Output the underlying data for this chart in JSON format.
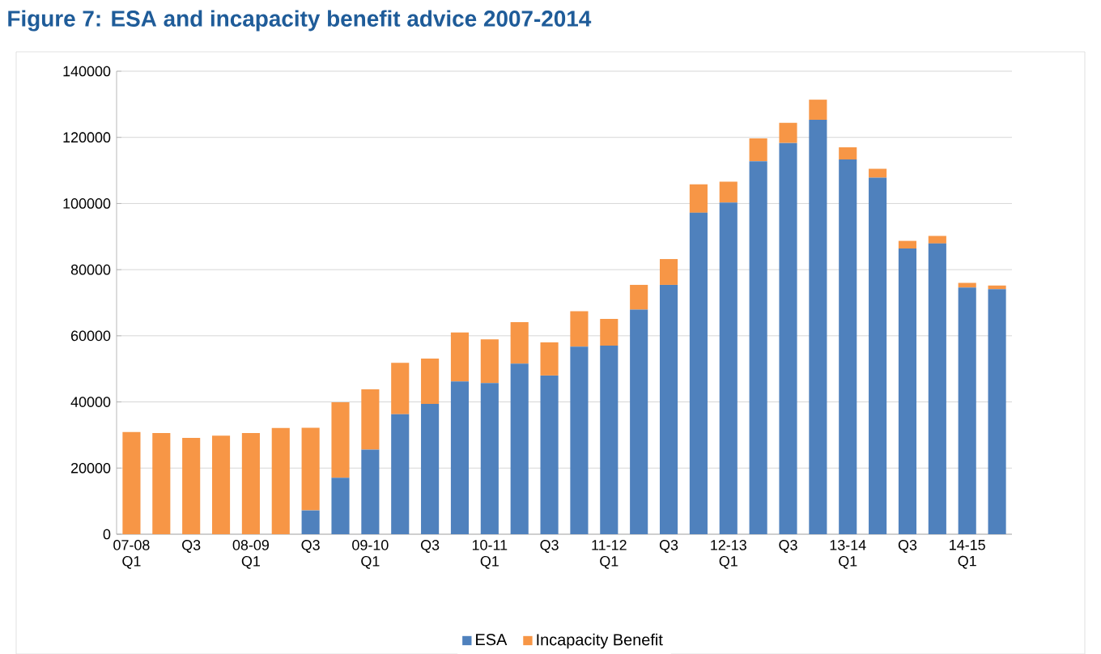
{
  "chart_data": {
    "type": "bar",
    "title": "Figure 7: ESA and incapacity benefit advice 2007-2014",
    "stacked": true,
    "categories": [
      "07-08 Q1",
      null,
      "Q3",
      null,
      "08-09 Q1",
      null,
      "Q3",
      null,
      "09-10 Q1",
      null,
      "Q3",
      null,
      "10-11 Q1",
      null,
      "Q3",
      null,
      "11-12 Q1",
      null,
      "Q3",
      null,
      "12-13 Q1",
      null,
      "Q3",
      null,
      "13-14 Q1",
      null,
      "Q3",
      null,
      "14-15 Q1",
      null
    ],
    "series": [
      {
        "name": "ESA",
        "color": "#4f81bd",
        "values": [
          0,
          0,
          0,
          0,
          0,
          0,
          7200,
          17100,
          25600,
          36300,
          39400,
          46200,
          45700,
          51600,
          48000,
          56700,
          57000,
          67900,
          75400,
          97200,
          100300,
          112800,
          118300,
          125300,
          113300,
          107800,
          86400,
          87900,
          74600,
          74100
        ]
      },
      {
        "name": "Incapacity Benefit",
        "color": "#f79646",
        "values": [
          30900,
          30600,
          29100,
          29800,
          30600,
          32100,
          25000,
          22800,
          18200,
          15500,
          13700,
          14800,
          13200,
          12500,
          10000,
          10700,
          8100,
          7500,
          7800,
          8600,
          6300,
          6900,
          6100,
          6100,
          3700,
          2700,
          2300,
          2300,
          1400,
          1100
        ]
      }
    ],
    "ylim": [
      0,
      140000
    ],
    "yticks": [
      0,
      20000,
      40000,
      60000,
      80000,
      100000,
      120000,
      140000
    ],
    "grid": "y",
    "legend": "bottom"
  }
}
